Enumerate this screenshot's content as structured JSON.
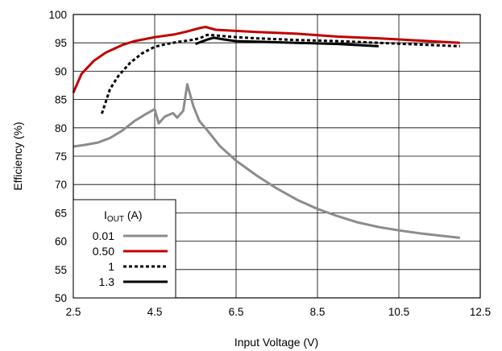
{
  "chart_data": {
    "type": "line",
    "title": "",
    "xlabel": "Input Voltage (V)",
    "ylabel": "Efficiency (%)",
    "xlim": [
      2.5,
      12.5
    ],
    "ylim": [
      50,
      100
    ],
    "xticks": [
      "2.5",
      "4.5",
      "6.5",
      "8.5",
      "10.5",
      "12.5"
    ],
    "yticks": [
      "50",
      "55",
      "60",
      "65",
      "70",
      "75",
      "80",
      "85",
      "90",
      "95",
      "100"
    ],
    "grid": true,
    "legend": {
      "position": "bottom-left",
      "title_main": "I",
      "title_sub": "OUT",
      "title_unit": " (A)"
    },
    "series": [
      {
        "name": "0.01",
        "color": "#8c8c8c",
        "dash": "solid",
        "x": [
          2.5,
          2.8,
          3.1,
          3.4,
          3.7,
          4.0,
          4.3,
          4.5,
          4.6,
          4.75,
          4.95,
          5.05,
          5.2,
          5.3,
          5.45,
          5.6,
          5.8,
          6.1,
          6.5,
          7.0,
          7.5,
          8.0,
          8.5,
          9.0,
          9.5,
          10.0,
          10.5,
          11.0,
          11.5,
          12.0
        ],
        "y": [
          76.7,
          77.0,
          77.4,
          78.2,
          79.5,
          81.2,
          82.5,
          83.3,
          80.8,
          82.0,
          82.6,
          81.8,
          83.0,
          87.7,
          83.8,
          81.2,
          79.5,
          76.8,
          74.2,
          71.6,
          69.3,
          67.3,
          65.7,
          64.4,
          63.3,
          62.5,
          61.9,
          61.4,
          61.0,
          60.6
        ]
      },
      {
        "name": "0.50",
        "color": "#c00000",
        "dash": "solid",
        "x": [
          2.5,
          2.7,
          3.0,
          3.3,
          3.7,
          4.0,
          4.5,
          5.0,
          5.3,
          5.6,
          5.75,
          6.0,
          6.5,
          7.0,
          8.0,
          9.0,
          10.0,
          11.0,
          12.0
        ],
        "y": [
          86.2,
          89.5,
          91.8,
          93.3,
          94.6,
          95.3,
          96.0,
          96.5,
          97.0,
          97.6,
          97.8,
          97.3,
          97.1,
          96.9,
          96.6,
          96.1,
          95.8,
          95.4,
          95.0
        ]
      },
      {
        "name": "1",
        "color": "#000000",
        "dash": "dashed",
        "x": [
          3.2,
          3.4,
          3.6,
          3.9,
          4.2,
          4.5,
          4.8,
          5.1,
          5.4,
          5.6,
          5.8,
          6.0,
          6.5,
          7.0,
          8.0,
          9.0,
          10.0,
          11.0,
          12.0
        ],
        "y": [
          82.5,
          86.8,
          89.1,
          91.5,
          93.2,
          94.3,
          94.8,
          95.2,
          95.5,
          95.8,
          96.4,
          96.3,
          96.0,
          95.8,
          95.5,
          95.3,
          95.0,
          94.7,
          94.4
        ]
      },
      {
        "name": "1.3",
        "color": "#000000",
        "dash": "solid",
        "x": [
          5.5,
          5.65,
          5.8,
          5.95,
          6.2,
          6.5,
          7.0,
          8.0,
          9.0,
          9.5,
          10.0
        ],
        "y": [
          94.8,
          95.2,
          95.6,
          95.9,
          95.6,
          95.3,
          95.2,
          95.0,
          94.8,
          94.6,
          94.4
        ]
      }
    ]
  }
}
